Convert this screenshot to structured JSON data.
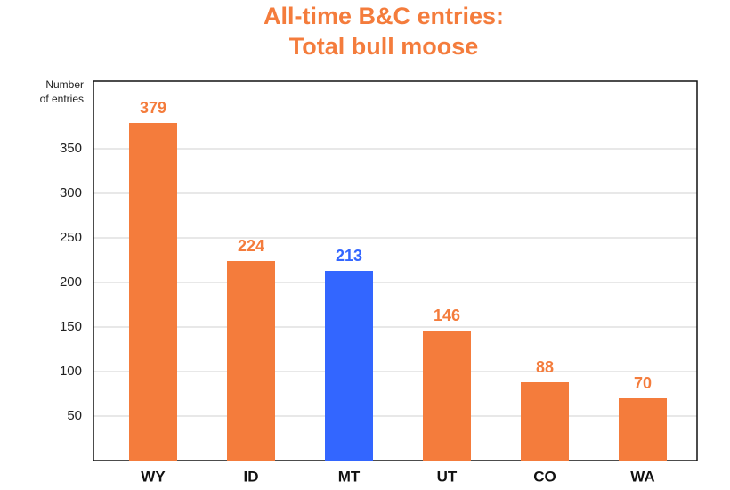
{
  "chart_data": {
    "type": "bar",
    "title": [
      "All-time B&C entries:",
      "Total bull moose"
    ],
    "y_label": [
      "Number",
      "of entries"
    ],
    "categories": [
      "WY",
      "ID",
      "MT",
      "UT",
      "CO",
      "WA"
    ],
    "values": [
      379,
      224,
      213,
      146,
      88,
      70
    ],
    "colors": [
      "#f47c3c",
      "#f47c3c",
      "#3366ff",
      "#f47c3c",
      "#f47c3c",
      "#f47c3c"
    ],
    "ylim": [
      0,
      426
    ],
    "yticks": [
      50,
      100,
      150,
      200,
      250,
      300,
      350
    ],
    "grid": true
  }
}
